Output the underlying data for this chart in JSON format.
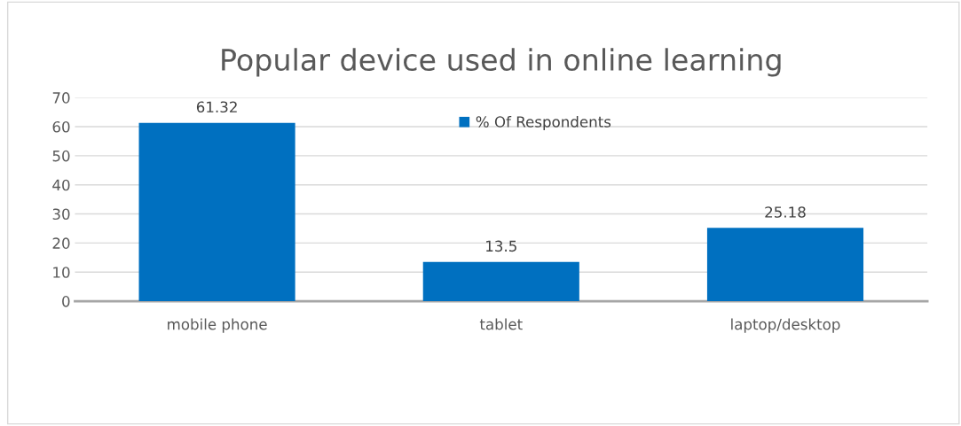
{
  "chart_data": {
    "type": "bar",
    "title": "Popular device used in online learning",
    "categories": [
      "mobile phone",
      "tablet",
      "laptop/desktop"
    ],
    "series": [
      {
        "name": "% Of Respondents",
        "color": "#0070c0",
        "values": [
          61.32,
          13.5,
          25.18
        ]
      }
    ],
    "ylim": [
      0,
      70
    ],
    "yticks": [
      0,
      10,
      20,
      30,
      40,
      50,
      60,
      70
    ],
    "grid": "y",
    "legend": "top",
    "data_labels": true
  }
}
